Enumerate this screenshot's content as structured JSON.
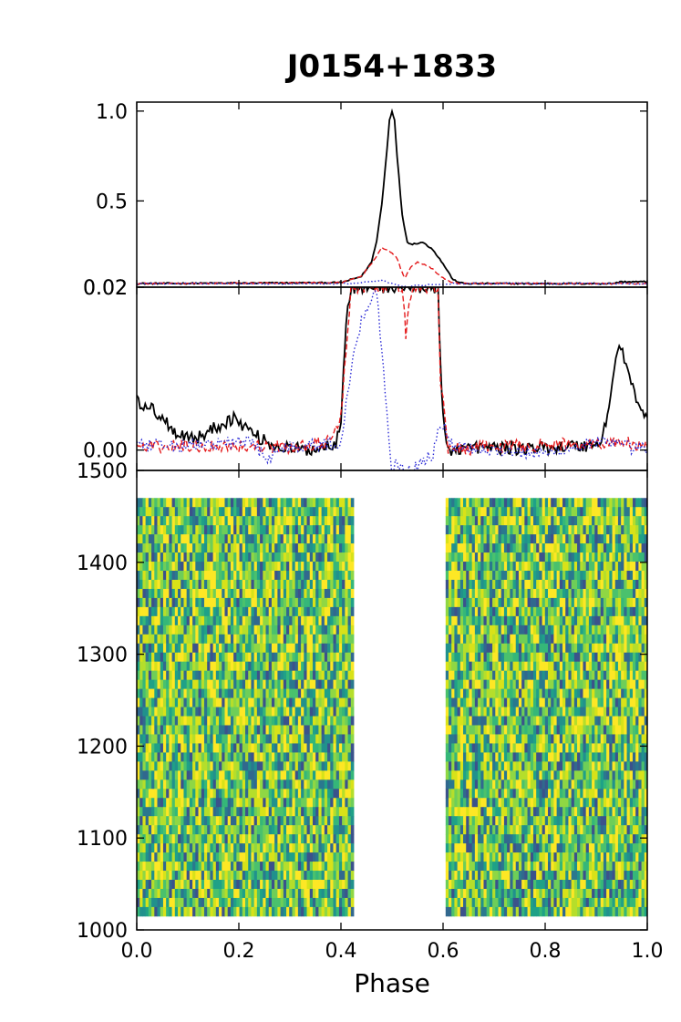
{
  "title": "J0154+1833",
  "chart_data": [
    {
      "type": "line",
      "panel": "profile",
      "xlim": [
        0.0,
        1.0
      ],
      "ylim": [
        0.02,
        1.05
      ],
      "yticks": [
        "1.0",
        "0.5",
        "0.02"
      ],
      "ytick_values": [
        1.0,
        0.5,
        0.02
      ],
      "series": [
        {
          "color": "#000000",
          "style": "solid",
          "x": [
            0.0,
            0.4,
            0.44,
            0.46,
            0.47,
            0.48,
            0.49,
            0.495,
            0.5,
            0.505,
            0.51,
            0.52,
            0.53,
            0.54,
            0.56,
            0.58,
            0.6,
            0.62,
            0.64,
            0.93,
            0.95,
            1.0
          ],
          "y": [
            0.04,
            0.045,
            0.08,
            0.16,
            0.28,
            0.48,
            0.78,
            0.95,
            1.0,
            0.95,
            0.75,
            0.42,
            0.27,
            0.26,
            0.27,
            0.23,
            0.15,
            0.06,
            0.04,
            0.04,
            0.05,
            0.05
          ]
        },
        {
          "color": "#e41a1c",
          "style": "dashed",
          "x": [
            0.0,
            0.4,
            0.44,
            0.47,
            0.48,
            0.49,
            0.5,
            0.51,
            0.52,
            0.525,
            0.53,
            0.54,
            0.55,
            0.56,
            0.58,
            0.6,
            0.62,
            0.64,
            1.0
          ],
          "y": [
            0.04,
            0.045,
            0.08,
            0.19,
            0.24,
            0.23,
            0.21,
            0.18,
            0.1,
            0.07,
            0.1,
            0.14,
            0.16,
            0.15,
            0.12,
            0.07,
            0.045,
            0.04,
            0.04
          ]
        },
        {
          "color": "#2b2bd6",
          "style": "dotted",
          "x": [
            0.0,
            0.42,
            0.46,
            0.48,
            0.5,
            0.52,
            0.55,
            0.58,
            0.62,
            1.0
          ],
          "y": [
            0.04,
            0.04,
            0.05,
            0.055,
            0.04,
            0.02,
            0.03,
            0.035,
            0.04,
            0.04
          ]
        }
      ]
    },
    {
      "type": "line",
      "panel": "baseline-zoom",
      "xlim": [
        0.0,
        1.0
      ],
      "ylim": [
        -0.0025,
        0.02
      ],
      "yticks": [
        "0.02",
        "0.00"
      ],
      "ytick_values": [
        0.02,
        0.0
      ],
      "series": [
        {
          "color": "#000000",
          "style": "solid",
          "x": [
            0.0,
            0.02,
            0.05,
            0.08,
            0.12,
            0.16,
            0.19,
            0.21,
            0.24,
            0.27,
            0.3,
            0.33,
            0.36,
            0.38,
            0.39,
            0.4,
            0.405,
            0.41,
            0.42,
            0.58,
            0.59,
            0.595,
            0.6,
            0.61,
            0.64,
            0.7,
            0.75,
            0.8,
            0.85,
            0.88,
            0.91,
            0.925,
            0.935,
            0.945,
            0.955,
            0.965,
            0.975,
            0.985,
            1.0
          ],
          "y": [
            0.006,
            0.0055,
            0.004,
            0.002,
            0.0015,
            0.003,
            0.004,
            0.003,
            0.0015,
            0.0005,
            0.0002,
            0.0,
            0.0003,
            0.0006,
            0.001,
            0.004,
            0.01,
            0.016,
            0.02,
            0.02,
            0.02,
            0.01,
            0.004,
            0.0,
            0.0003,
            0.0003,
            0.0002,
            0.0003,
            0.0005,
            0.0005,
            0.001,
            0.005,
            0.0105,
            0.0125,
            0.0115,
            0.009,
            0.007,
            0.005,
            0.004
          ]
        },
        {
          "color": "#e41a1c",
          "style": "dashed",
          "x": [
            0.0,
            0.1,
            0.2,
            0.3,
            0.38,
            0.4,
            0.41,
            0.42,
            0.52,
            0.525,
            0.527,
            0.53,
            0.54,
            0.59,
            0.595,
            0.6,
            0.61,
            0.7,
            0.8,
            0.9,
            0.95,
            1.0
          ],
          "y": [
            0.0004,
            0.0005,
            0.0005,
            0.0003,
            0.001,
            0.004,
            0.012,
            0.02,
            0.02,
            0.016,
            0.013,
            0.016,
            0.02,
            0.02,
            0.008,
            0.007,
            0.0,
            0.0004,
            0.0006,
            0.0008,
            0.001,
            0.0003
          ]
        },
        {
          "color": "#2b2bd6",
          "style": "dotted",
          "x": [
            0.0,
            0.1,
            0.2,
            0.23,
            0.25,
            0.3,
            0.4,
            0.42,
            0.44,
            0.47,
            0.48,
            0.49,
            0.5,
            0.51,
            0.52,
            0.53,
            0.54,
            0.58,
            0.59,
            0.6,
            0.62,
            0.7,
            0.8,
            0.9,
            1.0
          ],
          "y": [
            0.0005,
            0.0005,
            0.001,
            0.001,
            -0.001,
            0.0005,
            0.0008,
            0.01,
            0.016,
            0.02,
            0.012,
            0.005,
            -0.0025,
            -0.0015,
            -0.0025,
            -0.0025,
            -0.0025,
            -0.0005,
            0.002,
            0.003,
            0.0005,
            0.0,
            -0.0005,
            0.001,
            0.0
          ]
        }
      ]
    },
    {
      "type": "heatmap",
      "panel": "phase-vs-frequency",
      "xlabel": "Phase",
      "xlim": [
        0.0,
        1.0
      ],
      "ylim": [
        1000,
        1500
      ],
      "xticks": [
        "0.0",
        "0.2",
        "0.4",
        "0.6",
        "0.8",
        "1.0"
      ],
      "xtick_values": [
        0.0,
        0.2,
        0.4,
        0.6,
        0.8,
        1.0
      ],
      "yticks": [
        "1500",
        "1400",
        "1300",
        "1200",
        "1100",
        "1000"
      ],
      "ytick_values": [
        1500,
        1400,
        1300,
        1200,
        1100,
        1000
      ],
      "colormap": "viridis",
      "data_y_range": [
        1015,
        1470
      ],
      "data_x_segments": [
        [
          0.0,
          0.425
        ],
        [
          0.605,
          1.0
        ]
      ],
      "masked_phase_range": [
        0.425,
        0.605
      ]
    }
  ]
}
